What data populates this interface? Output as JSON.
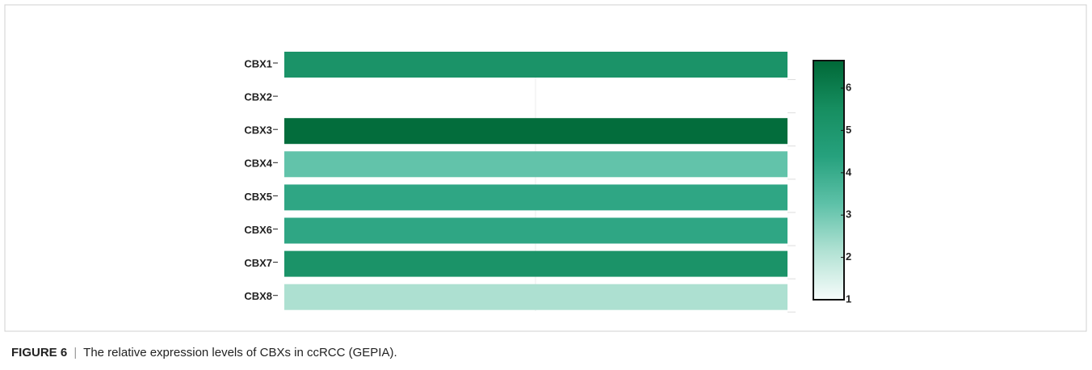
{
  "chart_data": {
    "type": "heatmap",
    "categories": [
      "CBX1",
      "CBX2",
      "CBX3",
      "CBX4",
      "CBX5",
      "CBX6",
      "CBX7",
      "CBX8"
    ],
    "values": [
      5.2,
      null,
      6.5,
      3.2,
      4.2,
      4.2,
      5.2,
      2.2
    ],
    "clim": [
      1,
      6.65
    ],
    "cticks": [
      1,
      2,
      3,
      4,
      5,
      6
    ],
    "colorscale": [
      "#f7fcfb",
      "#b2e2d4",
      "#5ec1a8",
      "#26a17d",
      "#168e60",
      "#006837"
    ]
  },
  "caption": {
    "label": "FIGURE 6",
    "separator": "|",
    "text": "The relative expression levels of CBXs in ccRCC (GEPIA)."
  }
}
